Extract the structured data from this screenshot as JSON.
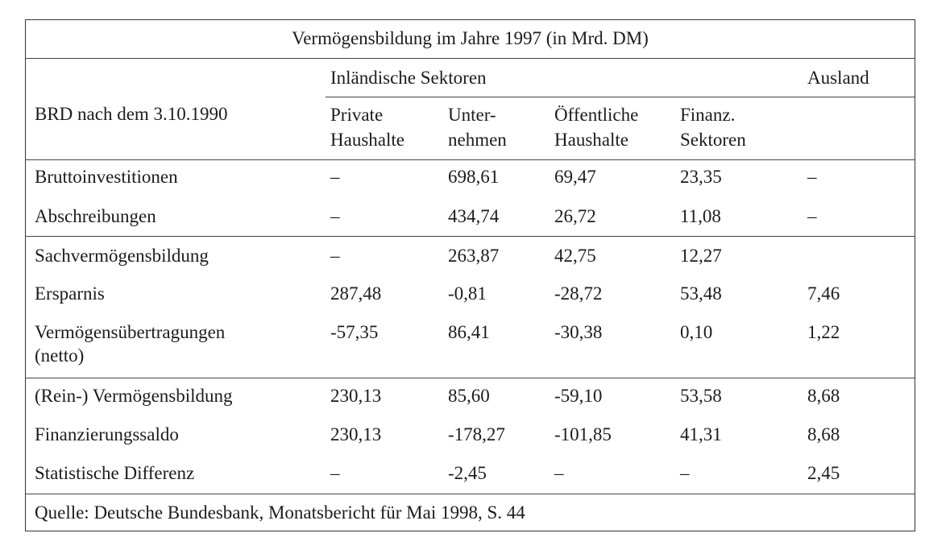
{
  "title": "Vermögensbildung im Jahre 1997 (in Mrd. DM)",
  "header": {
    "group_domestic": "Inländische Sektoren",
    "group_foreign": "Ausland",
    "row_label": "BRD nach dem 3.10.1990",
    "columns": [
      {
        "line1": "Private",
        "line2": "Haushalte"
      },
      {
        "line1": "Unter-",
        "line2": "nehmen"
      },
      {
        "line1": "Öffentliche",
        "line2": "Haushalte"
      },
      {
        "line1": "Finanz.",
        "line2": "Sektoren"
      }
    ]
  },
  "rows": [
    {
      "label": "Bruttoinvestitionen",
      "label2": "",
      "values": [
        "–",
        "698,61",
        "69,47",
        "23,35",
        "–"
      ]
    },
    {
      "label": "Abschreibungen",
      "label2": "",
      "values": [
        "–",
        "434,74",
        "26,72",
        "11,08",
        "–"
      ]
    },
    {
      "label": "Sachvermögensbildung",
      "label2": "",
      "values": [
        "–",
        "263,87",
        "42,75",
        "12,27",
        ""
      ]
    },
    {
      "label": "Ersparnis",
      "label2": "",
      "values": [
        "287,48",
        "-0,81",
        "-28,72",
        "53,48",
        "7,46"
      ]
    },
    {
      "label": "Vermögensübertragungen",
      "label2": "(netto)",
      "values": [
        "-57,35",
        "86,41",
        "-30,38",
        "0,10",
        "1,22"
      ]
    },
    {
      "label": "(Rein-) Vermögensbildung",
      "label2": "",
      "values": [
        "230,13",
        "85,60",
        "-59,10",
        "53,58",
        "8,68"
      ]
    },
    {
      "label": "Finanzierungssaldo",
      "label2": "",
      "values": [
        "230,13",
        "-178,27",
        "-101,85",
        "41,31",
        "8,68"
      ]
    },
    {
      "label": "Statistische Differenz",
      "label2": "",
      "values": [
        "–",
        "-2,45",
        "–",
        "–",
        "2,45"
      ]
    }
  ],
  "source": "Quelle: Deutsche Bundesbank, Monatsbericht für Mai 1998, S. 44"
}
